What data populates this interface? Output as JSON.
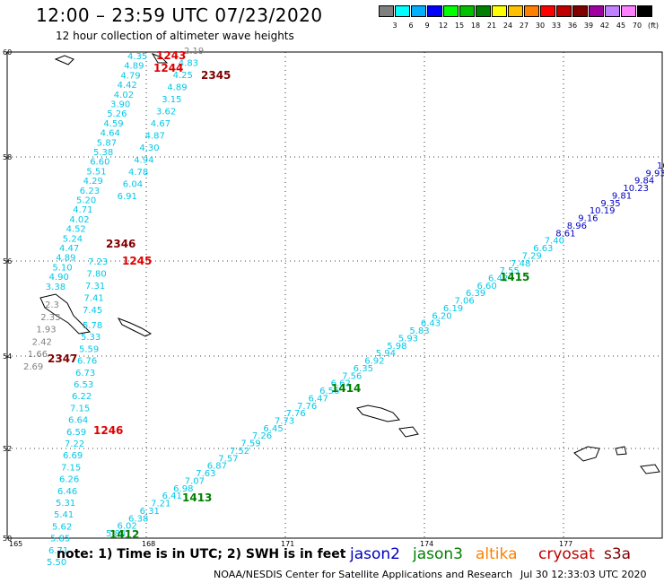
{
  "title": "12:00 – 23:59 UTC 07/23/2020",
  "subtitle": "12 hour collection of altimeter wave heights",
  "colorbar": {
    "swatches": [
      "#808080",
      "#00ffff",
      "#00b0ff",
      "#0000ff",
      "#00ff00",
      "#00c000",
      "#008000",
      "#ffff00",
      "#ffc000",
      "#ff8000",
      "#ff0000",
      "#c00000",
      "#800000",
      "#a000a0",
      "#c080ff",
      "#ff80ff",
      "#000000"
    ],
    "labels": [
      "3",
      "6",
      "9",
      "12",
      "15",
      "18",
      "21",
      "24",
      "27",
      "30",
      "33",
      "36",
      "39",
      "42",
      "45",
      "70",
      "(ft)"
    ]
  },
  "axes": {
    "lon_labels": [
      "165",
      "168",
      "171",
      "174",
      "177"
    ],
    "lat_labels": [
      "60",
      "58",
      "56",
      "54",
      "52",
      "50"
    ]
  },
  "colors": {
    "jason2": "#0000c0",
    "jason3": "#008000",
    "altika": "#ff8000",
    "cryosat": "#c00000",
    "s3a": "#800000",
    "cyan": "#00c8e8",
    "gray": "#808080"
  },
  "tracks": {
    "cyan_a_values": [
      "4.35",
      "4.89",
      "4.79",
      "4.42",
      "4.02",
      "3.90",
      "5.26",
      "4.59",
      "4.64",
      "5.87",
      "5.38",
      "6.60",
      "5.51",
      "4.29",
      "6.23",
      "5.20",
      "4.71",
      "4.02",
      "4.52",
      "5.24",
      "4.47",
      "4.89",
      "5.10",
      "4.90",
      "3.38"
    ],
    "cyan_b_values": [
      "2.19",
      "4.83",
      "4.25",
      "4.89",
      "3.15",
      "3.62",
      "4.67",
      "4.87",
      "4.30",
      "4.94",
      "4.78",
      "6.04",
      "6.91"
    ],
    "mid_values": [
      "7.23",
      "7.80",
      "7.31",
      "7.41",
      "7.45"
    ],
    "gray_values": [
      "2.3",
      "2.33",
      "1.93",
      "2.42",
      "1.66",
      "2.69"
    ],
    "cyan_c_values": [
      "5.78",
      "5.33",
      "5.59",
      "6.76",
      "6.73",
      "6.53",
      "6.22",
      "7.15",
      "6.64",
      "6.59",
      "7.22",
      "6.69",
      "7.15",
      "6.26",
      "6.46",
      "5.31",
      "5.41",
      "5.62",
      "5.85",
      "6.71",
      "5.50"
    ],
    "long_cyan_values": [
      "5.84",
      "6.02",
      "6.38",
      "6.31",
      "7.21",
      "6.41",
      "6.98",
      "7.07",
      "7.63",
      "6.87",
      "7.57",
      "7.52",
      "7.59",
      "7.26",
      "6.45",
      "7.73",
      "7.76",
      "7.76",
      "6.47",
      "6.56",
      "6.62",
      "7.56",
      "6.35",
      "6.92",
      "5.94",
      "5.98",
      "5.93",
      "5.83",
      "6.43",
      "6.20",
      "6.19",
      "7.06",
      "6.39",
      "6.60",
      "6.42",
      "7.55",
      "7.48",
      "7.29",
      "6.63",
      "7.40",
      "8.61",
      "8.96",
      "9.16",
      "10.19",
      "9.35",
      "9.81",
      "10.23",
      "9.84",
      "9.93",
      "10"
    ],
    "long_blue_from": 40
  },
  "passes": [
    {
      "label": "1243",
      "color": "#e00000"
    },
    {
      "label": "1244",
      "color": "#e00000"
    },
    {
      "label": "2345",
      "color": "#800000"
    },
    {
      "label": "2346",
      "color": "#800000"
    },
    {
      "label": "1245",
      "color": "#e00000"
    },
    {
      "label": "2347",
      "color": "#800000"
    },
    {
      "label": "1246",
      "color": "#e00000"
    },
    {
      "label": "1415",
      "color": "#008000"
    },
    {
      "label": "1414",
      "color": "#008000"
    },
    {
      "label": "1413",
      "color": "#008000"
    },
    {
      "label": "1412",
      "color": "#008000"
    }
  ],
  "footer": {
    "note": "note:  1) Time is in UTC;  2) SWH is in feet",
    "jason2": "jason2",
    "jason3": "jason3",
    "altika": "altika",
    "cryosat": "cryosat",
    "s3a": "s3a",
    "credit": "NOAA/NESDIS Center for Satellite Applications and Research",
    "timestamp": "Jul 30 12:33:03 UTC 2020"
  }
}
